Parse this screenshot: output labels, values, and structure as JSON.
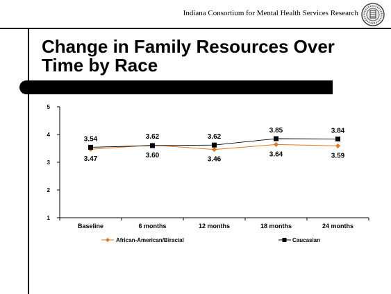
{
  "header": {
    "org_text": "Indiana Consortium for Mental Health Services Research",
    "seal_icon": "university-seal-icon"
  },
  "slide": {
    "title": "Change in Family Resources Over Time by Race"
  },
  "colors": {
    "african_american": "#e8741c",
    "caucasian": "#000000"
  },
  "chart_data": {
    "type": "line",
    "title": "",
    "xlabel": "",
    "ylabel": "",
    "categories": [
      "Baseline",
      "6 months",
      "12 months",
      "18 months",
      "24 months"
    ],
    "ylim": [
      1,
      5
    ],
    "yticks": [
      "1",
      "2",
      "3",
      "4",
      "5"
    ],
    "grid": false,
    "legend_position": "bottom",
    "series": [
      {
        "name": "African-American/Biracial",
        "values": [
          3.47,
          3.62,
          3.46,
          3.64,
          3.59
        ],
        "labels": [
          "3.47",
          "3.62",
          "3.46",
          "3.64",
          "3.59"
        ],
        "color": "#e8741c",
        "marker": "diamond"
      },
      {
        "name": "Caucasian",
        "values": [
          3.54,
          3.6,
          3.62,
          3.85,
          3.84
        ],
        "labels": [
          "3.54",
          "3.60",
          "3.62",
          "3.85",
          "3.84"
        ],
        "color": "#000000",
        "marker": "square"
      }
    ]
  }
}
